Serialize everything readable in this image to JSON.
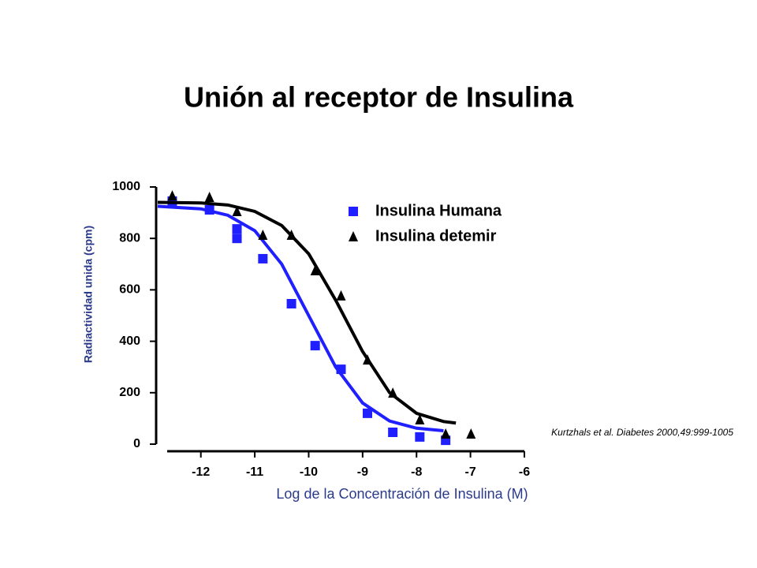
{
  "chart_data": {
    "type": "scatter",
    "title": "Unión al receptor de Insulina",
    "x_label": "Log de la Concentración de Insulina (M)",
    "y_label": "Radiactividad unida (cpm)",
    "annotation": "Kurtzhals et al. Diabetes 2000,49:999-1005",
    "xlim": [
      -12.8,
      -6
    ],
    "xticks": [
      -12,
      -11,
      -10,
      -9,
      -8,
      -7,
      -6
    ],
    "ylim": [
      0,
      1000
    ],
    "yticks": [
      0,
      200,
      400,
      600,
      800,
      1000
    ],
    "series": [
      {
        "name": "Insulina Humana",
        "color": "#1f1fff",
        "marker": "square",
        "x": [
          -12.53,
          -11.84,
          -11.33,
          -11.33,
          -10.85,
          -10.32,
          -9.88,
          -9.4,
          -8.91,
          -8.44,
          -7.94,
          -7.46
        ],
        "values": [
          945,
          911,
          837,
          800,
          721,
          546,
          383,
          291,
          120,
          46,
          28,
          15
        ],
        "fit_x": [
          -12.8,
          -12,
          -11.5,
          -11,
          -10.5,
          -10,
          -9.5,
          -9,
          -8.5,
          -8,
          -7.5
        ],
        "fit_values": [
          925,
          915,
          890,
          830,
          700,
          500,
          300,
          160,
          90,
          62,
          52
        ]
      },
      {
        "name": "Insulina detemir",
        "color": "#000000",
        "marker": "triangle",
        "x": [
          -12.53,
          -11.84,
          -11.33,
          -10.85,
          -10.32,
          -9.88,
          -9.4,
          -8.91,
          -8.44,
          -7.94,
          -7.46,
          -6.99
        ],
        "values": [
          966,
          960,
          905,
          813,
          813,
          675,
          577,
          328,
          199,
          95,
          40,
          40
        ],
        "fit_x": [
          -12.8,
          -12,
          -11.5,
          -11,
          -10.5,
          -10,
          -9.5,
          -9,
          -8.5,
          -8,
          -7.5,
          -7.27
        ],
        "fit_values": [
          940,
          938,
          930,
          905,
          850,
          740,
          560,
          360,
          200,
          120,
          88,
          82
        ]
      }
    ]
  }
}
